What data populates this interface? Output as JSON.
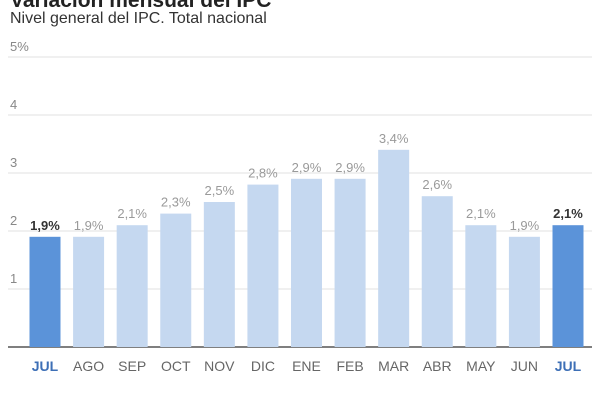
{
  "chart_data": {
    "type": "bar",
    "title": "Variación mensual del IPC",
    "subtitle": "Nivel general del IPC. Total nacional",
    "categories": [
      "JUL",
      "AGO",
      "SEP",
      "OCT",
      "NOV",
      "DIC",
      "ENE",
      "FEB",
      "MAR",
      "ABR",
      "MAY",
      "JUN",
      "JUL"
    ],
    "values": [
      1.9,
      1.9,
      2.1,
      2.3,
      2.5,
      2.8,
      2.9,
      2.9,
      3.4,
      2.6,
      2.1,
      1.9,
      2.1
    ],
    "value_labels": [
      "1,9%",
      "1,9%",
      "2,1%",
      "2,3%",
      "2,5%",
      "2,8%",
      "2,9%",
      "2,9%",
      "3,4%",
      "2,6%",
      "2,1%",
      "1,9%",
      "2,1%"
    ],
    "highlighted": [
      true,
      false,
      false,
      false,
      false,
      false,
      false,
      false,
      false,
      false,
      false,
      false,
      true
    ],
    "yticks": [
      {
        "value": 1,
        "label": "1"
      },
      {
        "value": 2,
        "label": "2"
      },
      {
        "value": 3,
        "label": "3"
      },
      {
        "value": 4,
        "label": "4"
      },
      {
        "value": 5,
        "label": "5%"
      }
    ],
    "ylim": [
      0,
      5
    ],
    "xlabel": "",
    "ylabel": "",
    "grid": true,
    "colors": {
      "bar": "#c5d8f0",
      "bar_highlight": "#5b93d9",
      "category_highlight": "#3d6fb6"
    }
  }
}
